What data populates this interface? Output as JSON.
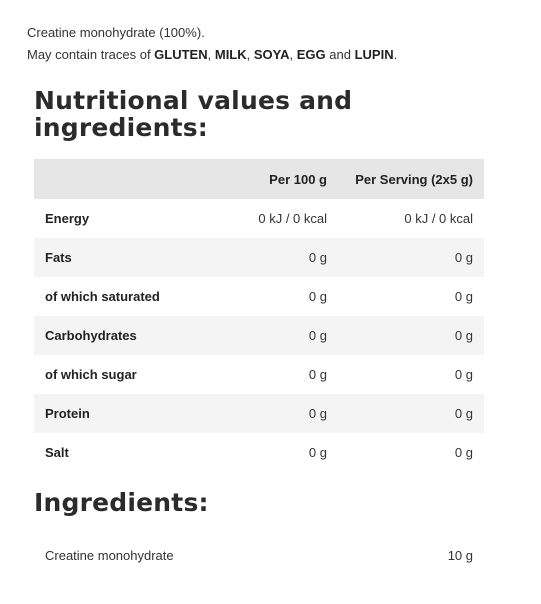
{
  "intro": {
    "line1": "Creatine monohydrate (100%).",
    "line2_prefix": "May contain traces of ",
    "allergens": [
      "GLUTEN",
      "MILK",
      "SOYA",
      "EGG",
      "LUPIN"
    ],
    "sep1": ", ",
    "sep2": ", ",
    "sep3": ", ",
    "sep_and": " and ",
    "line2_suffix": "."
  },
  "nutrition": {
    "heading": "Nutritional values and ingredients:",
    "columns": [
      "",
      "Per 100 g",
      "Per Serving (2x5 g)"
    ],
    "rows": [
      {
        "label": "Energy",
        "per100": "0 kJ / 0 kcal",
        "serving": "0 kJ / 0 kcal"
      },
      {
        "label": "Fats",
        "per100": "0 g",
        "serving": "0 g"
      },
      {
        "label": "of which saturated",
        "per100": "0 g",
        "serving": "0 g"
      },
      {
        "label": "Carbohydrates",
        "per100": "0 g",
        "serving": "0 g"
      },
      {
        "label": "of which sugar",
        "per100": "0 g",
        "serving": "0 g"
      },
      {
        "label": "Protein",
        "per100": "0 g",
        "serving": "0 g"
      },
      {
        "label": "Salt",
        "per100": "0 g",
        "serving": "0 g"
      }
    ]
  },
  "ingredients": {
    "heading": "Ingredients:",
    "items": [
      {
        "name": "Creatine monohydrate",
        "amount": "10 g"
      }
    ]
  }
}
